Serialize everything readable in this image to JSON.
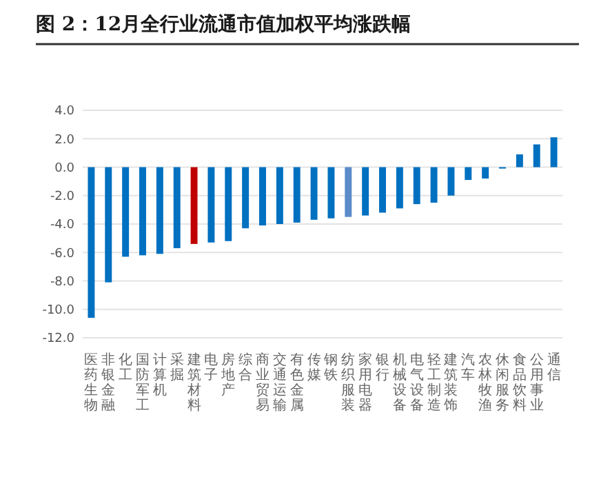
{
  "chart_data": {
    "type": "bar",
    "title": "图 2：12月全行业流通市值加权平均涨跌幅",
    "categories": [
      "医药生物",
      "非银金融",
      "化工",
      "国防军工",
      "计算机",
      "采掘",
      "建筑材料",
      "电子",
      "房地产",
      "综合",
      "商业贸易",
      "交通运输",
      "有色金属",
      "传媒",
      "钢铁",
      "纺织服装",
      "家用电器",
      "银行",
      "机械设备",
      "电气设备",
      "轻工制造",
      "建筑装饰",
      "汽车",
      "农林牧渔",
      "休闲服务",
      "食品饮料",
      "公用事业",
      "通信"
    ],
    "values": [
      -10.6,
      -8.1,
      -6.3,
      -6.2,
      -6.1,
      -5.7,
      -5.4,
      -5.3,
      -5.2,
      -4.3,
      -4.1,
      -4.0,
      -3.9,
      -3.7,
      -3.6,
      -3.5,
      -3.4,
      -3.2,
      -2.9,
      -2.6,
      -2.5,
      -2.0,
      -0.9,
      -0.8,
      -0.1,
      0.9,
      1.6,
      2.1
    ],
    "colors": [
      "#0070c0",
      "#0070c0",
      "#0070c0",
      "#0070c0",
      "#0070c0",
      "#0070c0",
      "#c00000",
      "#0070c0",
      "#0070c0",
      "#0070c0",
      "#0070c0",
      "#0070c0",
      "#0070c0",
      "#0070c0",
      "#0070c0",
      "#5b8bc9",
      "#0070c0",
      "#0070c0",
      "#0070c0",
      "#0070c0",
      "#0070c0",
      "#0070c0",
      "#0070c0",
      "#0070c0",
      "#0070c0",
      "#0070c0",
      "#0070c0",
      "#0070c0"
    ],
    "ylim": [
      -12,
      4
    ],
    "yticks": [
      {
        "value": -12,
        "label": "-12.0"
      },
      {
        "value": -10,
        "label": "-10.0"
      },
      {
        "value": -8,
        "label": "-8.0"
      },
      {
        "value": -6,
        "label": "-6.0"
      },
      {
        "value": -4,
        "label": "-4.0"
      },
      {
        "value": -2,
        "label": "-2.0"
      },
      {
        "value": 0,
        "label": "0.0"
      },
      {
        "value": 2,
        "label": "2.0"
      },
      {
        "value": 4,
        "label": "4.0"
      }
    ],
    "grid": "y"
  }
}
